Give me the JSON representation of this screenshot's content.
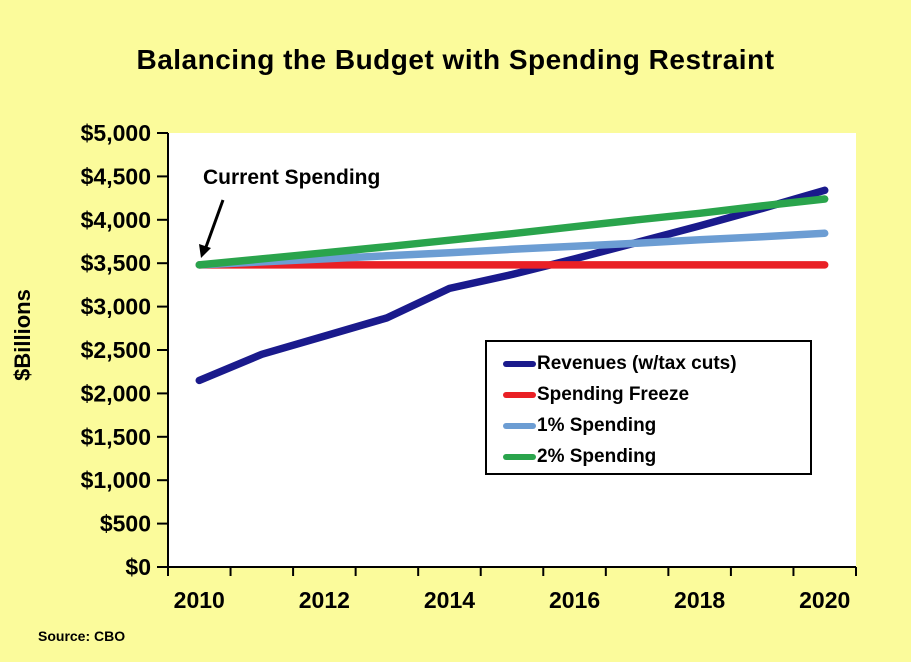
{
  "title": "Balancing the Budget with Spending Restraint",
  "annotation_label": "Current Spending",
  "source": "Source: CBO",
  "colors": {
    "page_background": "#FBFB9B",
    "plot_background": "#FFFFFF",
    "axis": "#000000",
    "revenues": "#1A1A8C",
    "spending_freeze": "#E92025",
    "one_pct_spending": "#6C9DD3",
    "two_pct_spending": "#2AA44C"
  },
  "chart_data": {
    "type": "line",
    "title": "Balancing the Budget with Spending Restraint",
    "xlabel": "",
    "ylabel": "$Billions",
    "x": [
      2010,
      2011,
      2012,
      2013,
      2014,
      2015,
      2016,
      2017,
      2018,
      2019,
      2020
    ],
    "x_tick_labels": [
      "2010",
      "2012",
      "2014",
      "2016",
      "2018",
      "2020"
    ],
    "ylim": [
      0,
      5000
    ],
    "y_ticks": [
      0,
      500,
      1000,
      1500,
      2000,
      2500,
      3000,
      3500,
      4000,
      4500,
      5000
    ],
    "y_tick_labels": [
      "$0",
      "$500",
      "$1,000",
      "$1,500",
      "$2,000",
      "$2,500",
      "$3,000",
      "$3,500",
      "$4,000",
      "$4,500",
      "$5,000"
    ],
    "grid": false,
    "legend_position": "center-right",
    "series": [
      {
        "name": "Revenues (w/tax cuts)",
        "color": "#1A1A8C",
        "values": [
          2150,
          2450,
          2660,
          2870,
          3210,
          3370,
          3550,
          3740,
          3930,
          4130,
          4340
        ]
      },
      {
        "name": "Spending Freeze",
        "color": "#E92025",
        "values": [
          3480,
          3480,
          3480,
          3480,
          3480,
          3480,
          3480,
          3480,
          3480,
          3480,
          3480
        ]
      },
      {
        "name": "1% Spending",
        "color": "#6C9DD3",
        "values": [
          3480,
          3515,
          3550,
          3585,
          3620,
          3660,
          3695,
          3730,
          3770,
          3805,
          3845
        ]
      },
      {
        "name": "2% Spending",
        "color": "#2AA44C",
        "values": [
          3480,
          3550,
          3620,
          3690,
          3765,
          3840,
          3920,
          4000,
          4075,
          4160,
          4240
        ]
      }
    ],
    "annotations": [
      {
        "text": "Current Spending",
        "points_to": {
          "x": 2010,
          "y": 3480
        }
      }
    ]
  }
}
